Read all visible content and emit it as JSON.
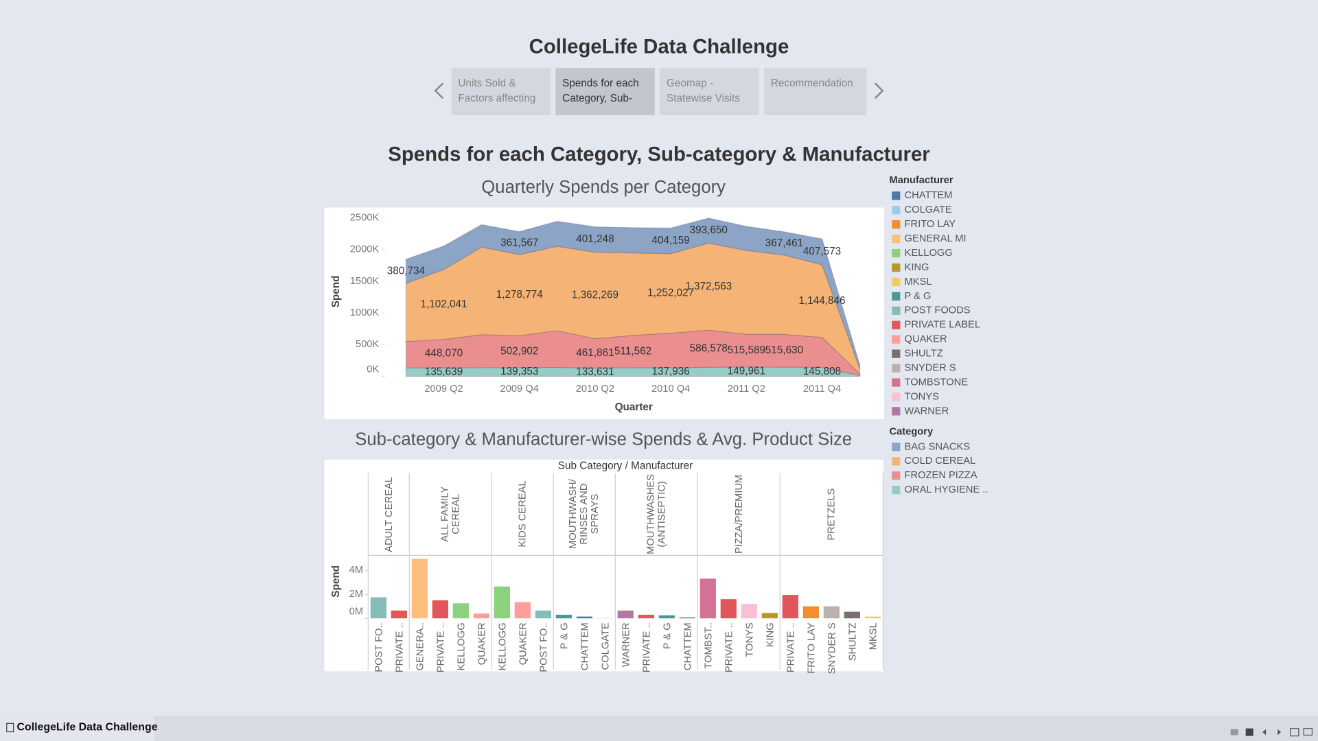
{
  "story": {
    "title": "CollegeLife Data Challenge",
    "tabs": [
      "Units Sold & Factors affecting",
      "Spends for each Category, Sub-",
      "Geomap - Statewise Visits",
      "Recommendation"
    ],
    "dashboard_title": "Spends for each Category, Sub-category & Manufacturer",
    "footer": "CollegeLife Data Challenge"
  },
  "chart_data": [
    {
      "type": "area",
      "title": "Quarterly Spends per Category",
      "x_label": "Quarter",
      "y_label": "Spend",
      "categories": [
        null,
        "2009 Q2",
        null,
        "2009 Q4",
        null,
        "2010 Q2",
        null,
        "2010 Q4",
        null,
        "2011 Q2",
        null,
        "2011 Q4",
        null
      ],
      "ylim": [
        0,
        2650000
      ],
      "yticks": [
        {
          "value": 0,
          "label": "0K"
        },
        {
          "value": 500000,
          "label": "500K"
        },
        {
          "value": 1000000,
          "label": "1000K"
        },
        {
          "value": 1500000,
          "label": "1500K"
        },
        {
          "value": 2000000,
          "label": "2000K"
        },
        {
          "value": 2500000,
          "label": "2500K"
        }
      ],
      "stacked": true,
      "legend_title": "Category",
      "series": [
        {
          "name": "BAG SNACKS",
          "color": "#8ca4c5",
          "values": [
            380734,
            370000,
            355000,
            361567,
            395000,
            401248,
            398000,
            404159,
            393650,
            380000,
            367461,
            407573,
            60000
          ],
          "value_labels": [
            "380,734",
            null,
            null,
            "361,567",
            null,
            "401,248",
            null,
            "404,159",
            "393,650",
            null,
            "367,461",
            "407,573",
            null
          ]
        },
        {
          "name": "COLD CEREAL",
          "color": "#f5b476",
          "values": [
            915000,
            1102041,
            1380000,
            1278774,
            1330000,
            1362269,
            1300000,
            1252027,
            1372563,
            1320000,
            1250000,
            1144846,
            80000
          ],
          "value_labels": [
            null,
            "1,102,041",
            null,
            "1,278,774",
            null,
            "1,362,269",
            null,
            "1,252,027",
            "1,372,563",
            null,
            null,
            "1,144,846",
            null
          ]
        },
        {
          "name": "FROZEN PIZZA",
          "color": "#ea8e8f",
          "values": [
            420000,
            448070,
            520000,
            502902,
            580000,
            461861,
            511562,
            545000,
            586578,
            515589,
            515630,
            470000,
            25000
          ],
          "value_labels": [
            null,
            "448,070",
            null,
            "502,902",
            null,
            "461,861",
            "511,562",
            null,
            "586,578",
            "515,589",
            "515,630",
            null,
            null
          ]
        },
        {
          "name": "ORAL HYGIENE ..",
          "color": "#97cbc6",
          "values": [
            132000,
            135639,
            138000,
            139353,
            141000,
            133631,
            136000,
            137936,
            143000,
            149961,
            147000,
            145808,
            12000
          ],
          "value_labels": [
            null,
            "135,639",
            null,
            "139,353",
            null,
            "133,631",
            null,
            "137,936",
            null,
            "149,961",
            null,
            "145,808",
            null
          ]
        }
      ]
    },
    {
      "type": "grouped-bar",
      "title": "Sub-category & Manufacturer-wise Spends & Avg. Product Size",
      "header": "Sub Category / Manufacturer",
      "y_label": "Spend",
      "ylim": [
        0,
        5100000
      ],
      "yticks": [
        {
          "value": 0,
          "label": "0M"
        },
        {
          "value": 2000000,
          "label": "2M"
        },
        {
          "value": 4000000,
          "label": "4M"
        }
      ],
      "groups": [
        {
          "name": "ADULT CEREAL",
          "bars": [
            {
              "label": "POST FO..",
              "value": 1750000,
              "color": "#86bcb6"
            },
            {
              "label": "PRIVATE ..",
              "value": 650000,
              "color": "#e15759"
            }
          ]
        },
        {
          "name": "ALL FAMILY CEREAL",
          "bars": [
            {
              "label": "GENERA..",
              "value": 4950000,
              "color": "#ffbe7d"
            },
            {
              "label": "PRIVATE ..",
              "value": 1500000,
              "color": "#e15759"
            },
            {
              "label": "KELLOGG",
              "value": 1250000,
              "color": "#8cd17d"
            },
            {
              "label": "QUAKER",
              "value": 400000,
              "color": "#ff9d9a"
            }
          ]
        },
        {
          "name": "KIDS CEREAL",
          "bars": [
            {
              "label": "KELLOGG",
              "value": 2650000,
              "color": "#8cd17d"
            },
            {
              "label": "QUAKER",
              "value": 1350000,
              "color": "#ff9d9a"
            },
            {
              "label": "POST FO..",
              "value": 650000,
              "color": "#86bcb6"
            }
          ]
        },
        {
          "name": "MOUTHWASH/ RINSES AND SPRAYS",
          "bars": [
            {
              "label": "P & G",
              "value": 300000,
              "color": "#499894"
            },
            {
              "label": "CHATTEM",
              "value": 150000,
              "color": "#4e79a7"
            },
            {
              "label": "COLGATE",
              "value": 20000,
              "color": "#a0cbe8"
            }
          ]
        },
        {
          "name": "MOUTHWASHES (ANTISEPTIC)",
          "bars": [
            {
              "label": "WARNER",
              "value": 650000,
              "color": "#b07aa1"
            },
            {
              "label": "PRIVATE ..",
              "value": 300000,
              "color": "#e15759"
            },
            {
              "label": "P & G",
              "value": 250000,
              "color": "#499894"
            },
            {
              "label": "CHATTEM",
              "value": 80000,
              "color": "#4e79a7"
            }
          ]
        },
        {
          "name": "PIZZA/PREMIUM",
          "bars": [
            {
              "label": "TOMBST..",
              "value": 3300000,
              "color": "#d37295"
            },
            {
              "label": "PRIVATE ..",
              "value": 1600000,
              "color": "#e15759"
            },
            {
              "label": "TONYS",
              "value": 1200000,
              "color": "#fabfd2"
            },
            {
              "label": "KING",
              "value": 450000,
              "color": "#b6992d"
            }
          ]
        },
        {
          "name": "PRETZELS",
          "bars": [
            {
              "label": "PRIVATE ..",
              "value": 1950000,
              "color": "#e15759"
            },
            {
              "label": "FRITO LAY",
              "value": 1000000,
              "color": "#f28e2b"
            },
            {
              "label": "SNYDER S",
              "value": 1000000,
              "color": "#bab0ac"
            },
            {
              "label": "SHULTZ",
              "value": 550000,
              "color": "#79706e"
            },
            {
              "label": "MKSL",
              "value": 150000,
              "color": "#f1ce63"
            }
          ]
        }
      ],
      "legend_title": "Manufacturer",
      "legend": [
        {
          "name": "CHATTEM",
          "color": "#4e79a7"
        },
        {
          "name": "COLGATE",
          "color": "#a0cbe8"
        },
        {
          "name": "FRITO LAY",
          "color": "#f28e2b"
        },
        {
          "name": "GENERAL MI",
          "color": "#ffbe7d"
        },
        {
          "name": "KELLOGG",
          "color": "#8cd17d"
        },
        {
          "name": "KING",
          "color": "#b6992d"
        },
        {
          "name": "MKSL",
          "color": "#f1ce63"
        },
        {
          "name": "P & G",
          "color": "#499894"
        },
        {
          "name": "POST FOODS",
          "color": "#86bcb6"
        },
        {
          "name": "PRIVATE LABEL",
          "color": "#e15759"
        },
        {
          "name": "QUAKER",
          "color": "#ff9d9a"
        },
        {
          "name": "SHULTZ",
          "color": "#79706e"
        },
        {
          "name": "SNYDER S",
          "color": "#bab0ac"
        },
        {
          "name": "TOMBSTONE",
          "color": "#d37295"
        },
        {
          "name": "TONYS",
          "color": "#fabfd2"
        },
        {
          "name": "WARNER",
          "color": "#b07aa1"
        }
      ]
    }
  ]
}
